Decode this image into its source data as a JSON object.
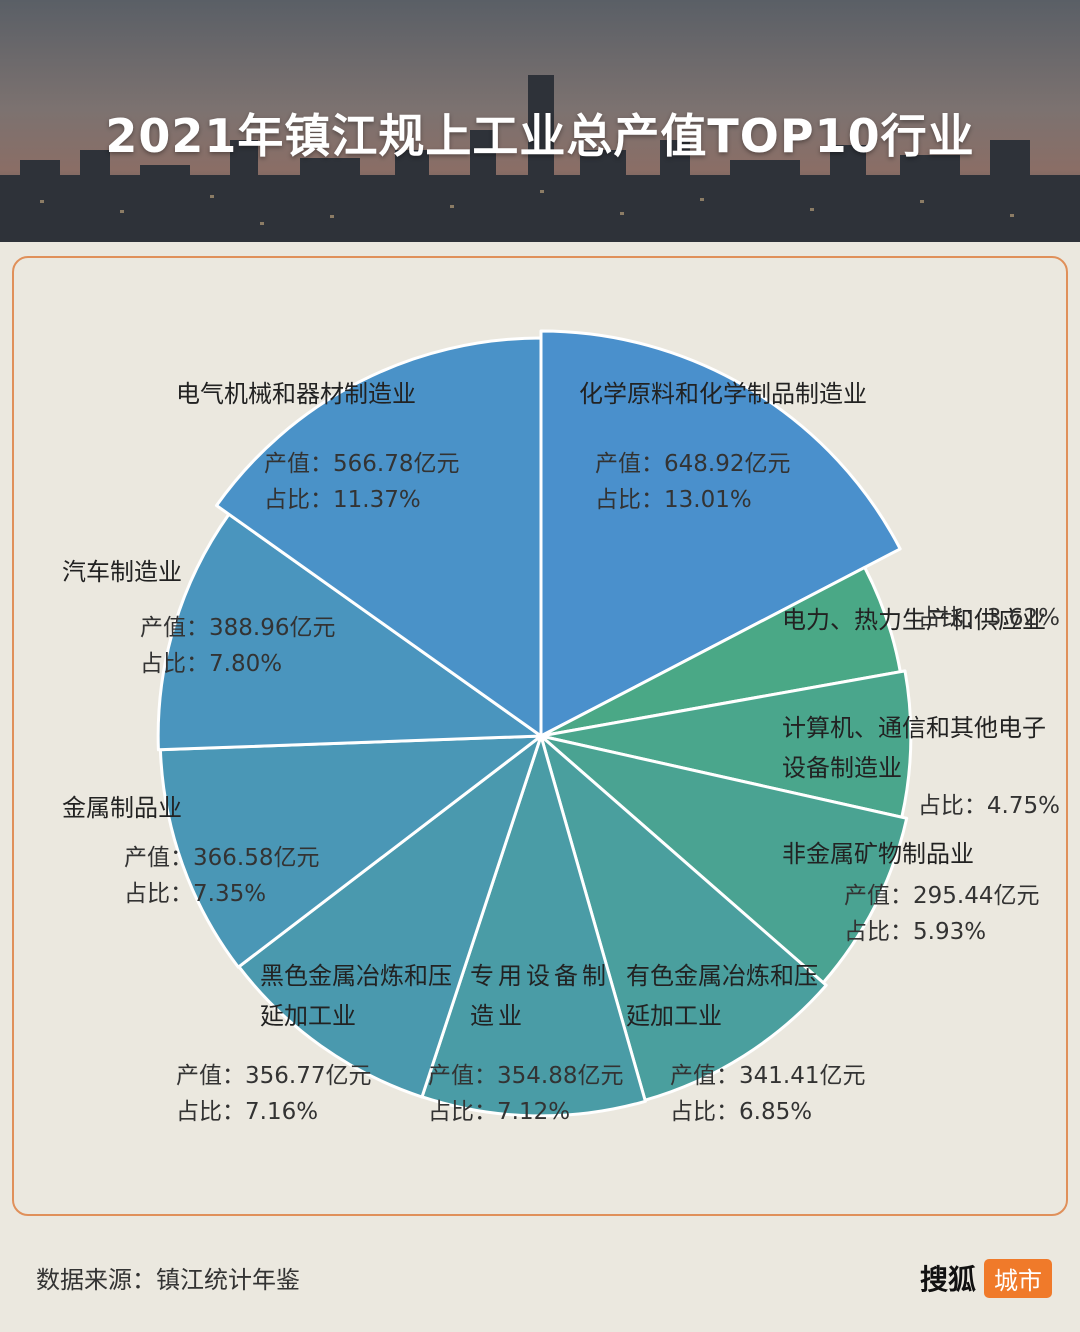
{
  "header": {
    "title": "2021年镇江规上工业总产值TOP10行业"
  },
  "chart_data": {
    "type": "pie",
    "title": "2021年镇江规上工业总产值TOP10行业",
    "value_unit": "亿元",
    "slices": [
      {
        "name": "化学原料和化学制品制造业",
        "value": 648.92,
        "value_text": "产值：648.92亿元",
        "share": 13.01,
        "share_text": "占比：13.01%",
        "color": "#4a90cc"
      },
      {
        "name": "电力、热力生产和供应业",
        "value": null,
        "value_text": "",
        "share": 3.62,
        "share_text": "占比：3.62%",
        "color": "#4aa886"
      },
      {
        "name": "计算机、通信和其他电子设备制造业",
        "value": null,
        "value_text": "",
        "share": 4.75,
        "share_text": "占比：4.75%",
        "color": "#4aa68c"
      },
      {
        "name": "非金属矿物制品业",
        "value": 295.44,
        "value_text": "产值：295.44亿元",
        "share": 5.93,
        "share_text": "占比：5.93%",
        "color": "#4aa392"
      },
      {
        "name": "有色金属冶炼和压延加工业",
        "value": 341.41,
        "value_text": "产值：341.41亿元",
        "share": 6.85,
        "share_text": "占比：6.85%",
        "color": "#4a9f9e"
      },
      {
        "name": "专用设备制造业",
        "value": 354.88,
        "value_text": "产值：354.88亿元",
        "share": 7.12,
        "share_text": "占比：7.12%",
        "color": "#4a9ca6"
      },
      {
        "name": "黑色金属冶炼和压延加工业",
        "value": 356.77,
        "value_text": "产值：356.77亿元",
        "share": 7.16,
        "share_text": "占比：7.16%",
        "color": "#4a99ae"
      },
      {
        "name": "金属制品业",
        "value": 366.58,
        "value_text": "产值：366.58亿元",
        "share": 7.35,
        "share_text": "占比：7.35%",
        "color": "#4a97b6"
      },
      {
        "name": "汽车制造业",
        "value": 388.96,
        "value_text": "产值：388.96亿元",
        "share": 7.8,
        "share_text": "占比：7.80%",
        "color": "#4a95be"
      },
      {
        "name": "电气机械和器材制造业",
        "value": 566.78,
        "value_text": "产值：566.78亿元",
        "share": 11.37,
        "share_text": "占比：11.37%",
        "color": "#4a92c8"
      }
    ]
  },
  "footer": {
    "source": "数据来源：镇江统计年鉴",
    "brand_name": "搜狐",
    "brand_badge": "城市"
  }
}
